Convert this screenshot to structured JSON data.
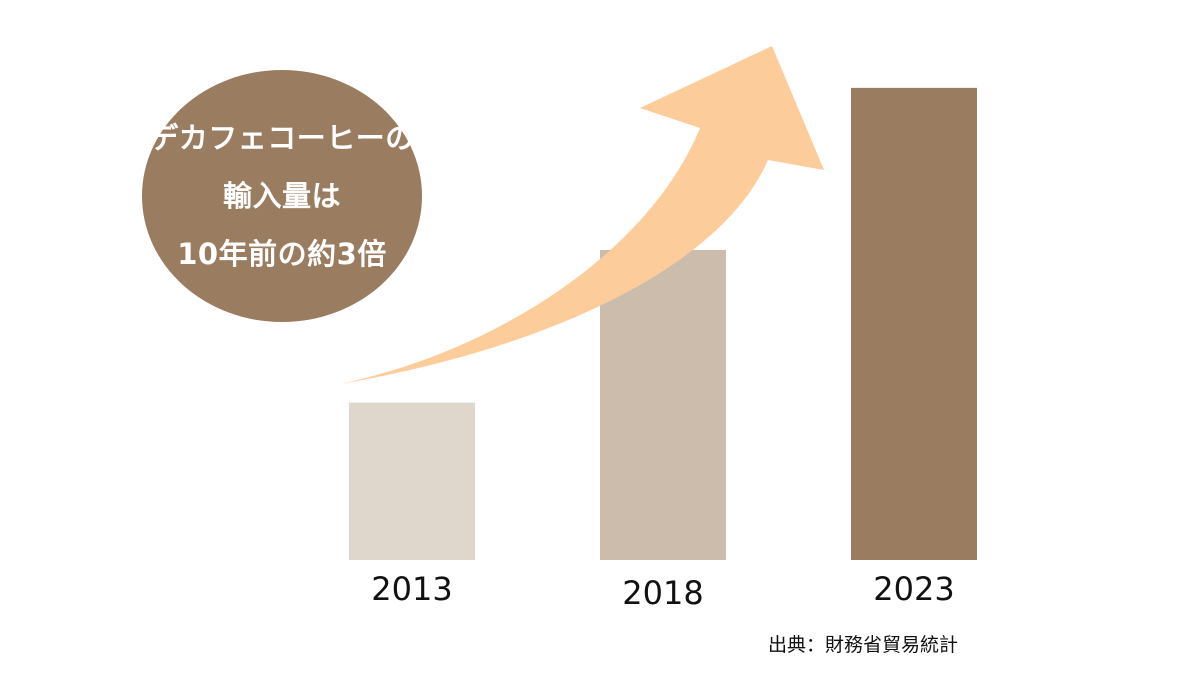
{
  "callout": {
    "lines": [
      "デカフェコーヒーの",
      "輸入量は",
      "10年前の約3倍"
    ]
  },
  "source_note": "出典：財務省貿易統計",
  "chart_data": {
    "type": "bar",
    "categories": [
      "2013",
      "2018",
      "2023"
    ],
    "values": [
      1,
      1.97,
      3
    ],
    "ylim": [
      0,
      3.05
    ],
    "grid": false,
    "bar_colors": [
      "#dfd6cc",
      "#cbbcac",
      "#9a7c60"
    ],
    "trend_arrow_color": "#fdcc9b"
  }
}
